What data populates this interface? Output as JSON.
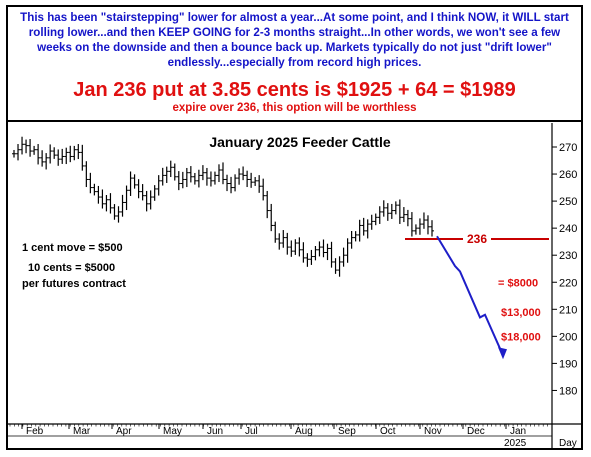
{
  "annotation": {
    "note_text": "This has been \"stairstepping\" lower for almost a year...At some point, and I think NOW, it WILL start rolling lower...and then KEEP GOING for 2-3 months straight...In other words, we won't see a few weeks on the downside and then a bounce back up. Markets typically do not just \"drift lower\" endlessly...especially from record high prices.",
    "headline": "Jan 236 put at 3.85 cents is $1925 + 64 = $1989",
    "subline": "expire over 236, this option will be worthless"
  },
  "chart_data": {
    "type": "ohlc-bar",
    "title": "January 2025 Feeder Cattle",
    "xlabel": "",
    "ylabel": "",
    "x_tick_labels": [
      "Feb",
      "Mar",
      "Apr",
      "May",
      "Jun",
      "Jul",
      "Aug",
      "Sep",
      "Oct",
      "Nov",
      "Dec",
      "Jan"
    ],
    "x_year_label": "2025",
    "x_unit_label": "Day",
    "y_ticks": [
      180,
      190,
      200,
      210,
      220,
      230,
      240,
      250,
      260,
      270
    ],
    "ylim": [
      177,
      276
    ],
    "grid": false,
    "side_note": [
      "1 cent move = $500",
      "10 cents = $5000",
      "per futures contract"
    ],
    "strike": {
      "label": "236",
      "value": 236
    },
    "projection_path_y": [
      237,
      225,
      210,
      193
    ],
    "projection_labels": [
      {
        "text": "= $8000",
        "y": 220
      },
      {
        "text": "$13,000",
        "y": 209
      },
      {
        "text": "$18,000",
        "y": 200
      }
    ],
    "price_series": [
      267.5,
      269.0,
      271.0,
      270.5,
      268.5,
      269.0,
      266.0,
      264.5,
      266.0,
      268.5,
      267.0,
      265.5,
      266.5,
      268.0,
      266.5,
      269.0,
      268.0,
      263.0,
      258.0,
      255.0,
      253.5,
      251.5,
      249.0,
      250.5,
      247.5,
      244.5,
      246.0,
      249.5,
      254.0,
      258.5,
      256.0,
      253.5,
      252.0,
      249.0,
      251.5,
      254.5,
      257.5,
      259.5,
      261.0,
      262.5,
      259.0,
      256.5,
      258.0,
      260.5,
      259.0,
      257.5,
      259.5,
      260.5,
      258.5,
      257.5,
      259.5,
      261.5,
      258.0,
      256.5,
      255.0,
      258.5,
      260.0,
      259.5,
      258.0,
      257.0,
      257.5,
      255.5,
      252.0,
      246.5,
      241.0,
      236.0,
      234.5,
      236.5,
      233.0,
      231.5,
      234.5,
      232.0,
      229.0,
      228.5,
      229.5,
      232.0,
      233.0,
      231.0,
      232.5,
      227.5,
      224.5,
      227.5,
      230.0,
      234.5,
      236.5,
      237.5,
      241.0,
      239.0,
      241.5,
      242.5,
      244.0,
      246.0,
      247.5,
      245.5,
      246.5,
      248.5,
      244.0,
      245.0,
      243.5,
      239.0,
      240.0,
      241.5,
      243.0,
      240.5,
      239.0
    ]
  }
}
